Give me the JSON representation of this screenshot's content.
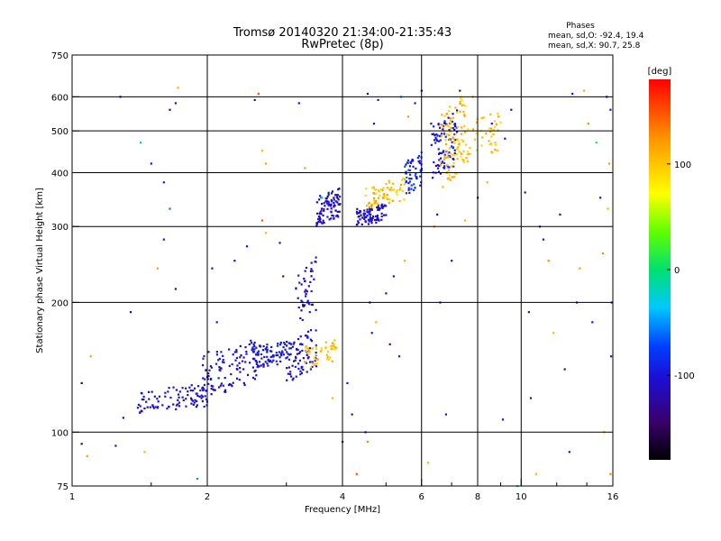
{
  "chart_data": {
    "type": "scatter",
    "title": "Tromsø 20140320 21:34:00-21:35:43",
    "subtitle": "RwPretec (8p)",
    "xlabel": "Frequency [MHz]",
    "ylabel": "Stationary phase Virtual Height [km]",
    "x_scale": "log",
    "y_scale": "log",
    "xlim": [
      1,
      16
    ],
    "ylim": [
      75,
      750
    ],
    "grid": true,
    "x_ticks": [
      1,
      2,
      4,
      6,
      8,
      10,
      16
    ],
    "x_tick_labels": [
      "1",
      "2",
      "4",
      "6",
      "8",
      "10",
      "16"
    ],
    "y_ticks": [
      75,
      100,
      200,
      300,
      400,
      500,
      600,
      750
    ],
    "y_tick_labels": [
      "75",
      "100",
      "200",
      "300",
      "400",
      "500",
      "600",
      "750"
    ],
    "x_minor_ticks": [
      1.5,
      3,
      5,
      7,
      9,
      12,
      14
    ],
    "phases_legend": {
      "heading": "Phases",
      "line_o": "mean, sd,O: -92.4, 19.4",
      "line_x": "mean, sd,X:  90.7, 25.8"
    },
    "colorbar": {
      "label": "[deg]",
      "range": [
        -180,
        180
      ],
      "ticks": [
        100,
        0,
        -100
      ],
      "tick_labels": [
        "100",
        "0",
        "-100"
      ]
    },
    "clusters": [
      {
        "f": [
          1.4,
          2.0
        ],
        "h": [
          110,
          130
        ],
        "phase": [
          -120,
          -90
        ],
        "n": 90
      },
      {
        "f": [
          1.95,
          2.6
        ],
        "h": [
          120,
          165
        ],
        "phase": [
          -120,
          -90
        ],
        "n": 110
      },
      {
        "f": [
          2.5,
          3.1
        ],
        "h": [
          140,
          165
        ],
        "phase": [
          -115,
          -80
        ],
        "n": 90
      },
      {
        "f": [
          3.0,
          3.5
        ],
        "h": [
          130,
          175
        ],
        "phase": [
          -120,
          -90
        ],
        "n": 80
      },
      {
        "f": [
          3.15,
          3.5
        ],
        "h": [
          175,
          255
        ],
        "phase": [
          -120,
          -90
        ],
        "n": 45
      },
      {
        "f": [
          3.3,
          3.9
        ],
        "h": [
          140,
          165
        ],
        "phase": [
          80,
          120
        ],
        "n": 45
      },
      {
        "f": [
          3.5,
          3.95
        ],
        "h": [
          300,
          370
        ],
        "phase": [
          -125,
          -95
        ],
        "n": 90
      },
      {
        "f": [
          4.3,
          5.0
        ],
        "h": [
          300,
          340
        ],
        "phase": [
          -125,
          -90
        ],
        "n": 90
      },
      {
        "f": [
          4.5,
          5.5
        ],
        "h": [
          330,
          390
        ],
        "phase": [
          85,
          125
        ],
        "n": 70
      },
      {
        "f": [
          5.5,
          6.0
        ],
        "h": [
          350,
          450
        ],
        "phase": [
          -115,
          -60
        ],
        "n": 55
      },
      {
        "f": [
          6.3,
          7.2
        ],
        "h": [
          380,
          560
        ],
        "phase": [
          -120,
          -80
        ],
        "n": 90
      },
      {
        "f": [
          6.6,
          7.5
        ],
        "h": [
          360,
          620
        ],
        "phase": [
          85,
          130
        ],
        "n": 95
      },
      {
        "f": [
          7.5,
          9.0
        ],
        "h": [
          420,
          560
        ],
        "phase": [
          85,
          120
        ],
        "n": 45
      }
    ],
    "scatter_points": [
      [
        1.05,
        94,
        -130
      ],
      [
        1.08,
        88,
        120
      ],
      [
        1.25,
        93,
        -110
      ],
      [
        1.28,
        600,
        -100
      ],
      [
        1.3,
        108,
        -110
      ],
      [
        1.35,
        190,
        -130
      ],
      [
        1.42,
        470,
        -10
      ],
      [
        1.5,
        420,
        -100
      ],
      [
        1.55,
        240,
        120
      ],
      [
        1.6,
        280,
        -100
      ],
      [
        1.65,
        560,
        -110
      ],
      [
        1.7,
        580,
        -110
      ],
      [
        1.7,
        215,
        -120
      ],
      [
        1.72,
        630,
        110
      ],
      [
        1.65,
        330,
        -60
      ],
      [
        1.6,
        380,
        -100
      ],
      [
        1.05,
        130,
        -150
      ],
      [
        1.1,
        150,
        120
      ],
      [
        1.45,
        90,
        110
      ],
      [
        1.9,
        78,
        -50
      ],
      [
        2.05,
        240,
        -110
      ],
      [
        2.1,
        180,
        -100
      ],
      [
        2.3,
        250,
        -110
      ],
      [
        2.45,
        270,
        -100
      ],
      [
        2.55,
        590,
        -110
      ],
      [
        2.6,
        610,
        150
      ],
      [
        2.65,
        450,
        110
      ],
      [
        2.7,
        420,
        120
      ],
      [
        2.65,
        310,
        150
      ],
      [
        2.7,
        290,
        110
      ],
      [
        2.9,
        275,
        -110
      ],
      [
        2.95,
        230,
        -110
      ],
      [
        3.2,
        580,
        -100
      ],
      [
        3.3,
        410,
        120
      ],
      [
        3.4,
        140,
        -90
      ],
      [
        3.6,
        350,
        -10
      ],
      [
        3.8,
        120,
        110
      ],
      [
        4.0,
        95,
        -110
      ],
      [
        4.1,
        130,
        -100
      ],
      [
        4.2,
        110,
        -100
      ],
      [
        4.3,
        80,
        150
      ],
      [
        4.5,
        100,
        -100
      ],
      [
        4.55,
        95,
        130
      ],
      [
        4.55,
        610,
        -100
      ],
      [
        4.6,
        200,
        -110
      ],
      [
        4.65,
        170,
        -100
      ],
      [
        4.7,
        520,
        -110
      ],
      [
        4.75,
        180,
        110
      ],
      [
        4.8,
        590,
        -110
      ],
      [
        5.0,
        210,
        -100
      ],
      [
        5.1,
        160,
        -110
      ],
      [
        5.2,
        230,
        -100
      ],
      [
        5.35,
        150,
        -100
      ],
      [
        5.4,
        600,
        -50
      ],
      [
        5.5,
        250,
        110
      ],
      [
        5.6,
        540,
        120
      ],
      [
        5.8,
        580,
        -110
      ],
      [
        6.0,
        620,
        -100
      ],
      [
        6.2,
        85,
        40
      ],
      [
        6.4,
        300,
        130
      ],
      [
        6.5,
        320,
        -100
      ],
      [
        6.3,
        520,
        -110
      ],
      [
        6.6,
        200,
        -100
      ],
      [
        6.8,
        110,
        -110
      ],
      [
        7.0,
        250,
        -110
      ],
      [
        7.3,
        620,
        -110
      ],
      [
        7.5,
        310,
        110
      ],
      [
        7.8,
        600,
        130
      ],
      [
        8.0,
        350,
        -110
      ],
      [
        8.4,
        380,
        110
      ],
      [
        8.6,
        520,
        -100
      ],
      [
        8.9,
        540,
        120
      ],
      [
        9.1,
        107,
        -110
      ],
      [
        9.2,
        480,
        -110
      ],
      [
        9.5,
        560,
        -110
      ],
      [
        9.8,
        75,
        -10
      ],
      [
        10.2,
        360,
        -110
      ],
      [
        10.4,
        190,
        -110
      ],
      [
        10.5,
        120,
        -100
      ],
      [
        10.8,
        80,
        110
      ],
      [
        11.0,
        300,
        -110
      ],
      [
        11.2,
        280,
        -100
      ],
      [
        11.5,
        250,
        130
      ],
      [
        11.8,
        170,
        110
      ],
      [
        12.2,
        320,
        -110
      ],
      [
        12.5,
        140,
        -120
      ],
      [
        12.8,
        90,
        -110
      ],
      [
        13.0,
        610,
        -100
      ],
      [
        13.3,
        200,
        -110
      ],
      [
        13.5,
        240,
        120
      ],
      [
        13.8,
        620,
        110
      ],
      [
        14.1,
        520,
        130
      ],
      [
        14.4,
        180,
        -100
      ],
      [
        14.7,
        470,
        10
      ],
      [
        15.0,
        350,
        -110
      ],
      [
        15.2,
        260,
        130
      ],
      [
        15.3,
        100,
        120
      ],
      [
        15.5,
        600,
        -110
      ],
      [
        15.7,
        420,
        120
      ],
      [
        15.8,
        560,
        -110
      ],
      [
        15.8,
        80,
        130
      ],
      [
        15.6,
        330,
        110
      ],
      [
        15.9,
        200,
        -100
      ],
      [
        15.85,
        150,
        -100
      ]
    ]
  }
}
